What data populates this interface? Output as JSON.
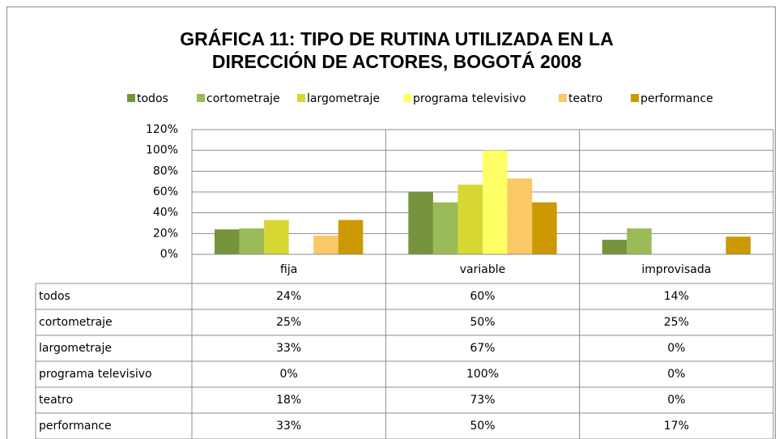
{
  "chart_data": {
    "type": "bar",
    "title": [
      "GRÁFICA 11: TIPO DE RUTINA UTILIZADA EN LA",
      "DIRECCIÓN DE ACTORES, BOGOTÁ 2008"
    ],
    "categories": [
      "fija",
      "variable",
      "improvisada"
    ],
    "series": [
      {
        "name": "todos",
        "color": "#77933c",
        "values": [
          24,
          60,
          14
        ],
        "value_labels": [
          "24%",
          "60%",
          "14%"
        ]
      },
      {
        "name": "cortometraje",
        "color": "#9bbb59",
        "values": [
          25,
          50,
          25
        ],
        "value_labels": [
          "25%",
          "50%",
          "25%"
        ]
      },
      {
        "name": "largometraje",
        "color": "#d7d733",
        "values": [
          33,
          67,
          0
        ],
        "value_labels": [
          "33%",
          "67%",
          "0%"
        ]
      },
      {
        "name": "programa televisivo",
        "color": "#ffff66",
        "values": [
          0,
          100,
          0
        ],
        "value_labels": [
          "0%",
          "100%",
          "0%"
        ]
      },
      {
        "name": "teatro",
        "color": "#fac864",
        "values": [
          18,
          73,
          0
        ],
        "value_labels": [
          "18%",
          "73%",
          "0%"
        ]
      },
      {
        "name": "performance",
        "color": "#cc9900",
        "values": [
          33,
          50,
          17
        ],
        "value_labels": [
          "33%",
          "50%",
          "17%"
        ]
      }
    ],
    "ylim": [
      0,
      120
    ],
    "yticks": [
      {
        "value": 0,
        "label": "0%"
      },
      {
        "value": 20,
        "label": "20%"
      },
      {
        "value": 40,
        "label": "40%"
      },
      {
        "value": 60,
        "label": "60%"
      },
      {
        "value": 80,
        "label": "80%"
      },
      {
        "value": 100,
        "label": "100%"
      },
      {
        "value": 120,
        "label": "120%"
      }
    ],
    "grid": true,
    "legend": "top",
    "data_table": true
  }
}
